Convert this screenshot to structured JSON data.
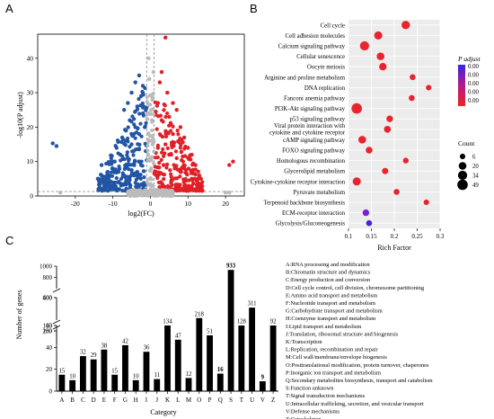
{
  "panels": {
    "a": "A",
    "b": "B",
    "c": "C"
  },
  "chart_data": [
    {
      "type": "scatter",
      "xlabel": "log2(FC)",
      "ylabel": "-log10(P adjust)",
      "xlim": [
        -30,
        25
      ],
      "ylim": [
        0,
        47
      ],
      "x_ticks": [
        -20,
        -10,
        0,
        10,
        20
      ],
      "y_ticks": [
        0,
        10,
        20,
        30,
        40
      ],
      "thresholds": {
        "x": [
          -1,
          1
        ],
        "y": 1.3
      },
      "series": [
        {
          "color": "#2255a4",
          "points": [
            [
              -25,
              14.5
            ],
            [
              -26,
              15.3
            ],
            [
              -13,
              9
            ],
            [
              -14,
              5
            ],
            [
              -7,
              25
            ],
            [
              -6,
              27
            ],
            [
              -5,
              30
            ],
            [
              -4,
              33
            ],
            [
              -3,
              35
            ],
            [
              -2.5,
              29
            ],
            [
              -5.5,
              22
            ],
            [
              -8,
              12
            ],
            [
              -10,
              8
            ],
            [
              -11,
              6
            ],
            [
              -9,
              14
            ],
            [
              -7.5,
              17
            ],
            [
              -4,
              20
            ],
            [
              -3.5,
              26
            ],
            [
              -2,
              32
            ],
            [
              -6.5,
              19
            ],
            [
              -12,
              4
            ],
            [
              -3,
              18
            ],
            [
              -2,
              24
            ],
            [
              -9.5,
              10
            ],
            [
              -5,
              15
            ],
            [
              -8.5,
              7
            ],
            [
              -6,
              11
            ],
            [
              -4.5,
              13
            ],
            [
              -2.5,
              9
            ],
            [
              -7,
              6
            ],
            [
              -3.5,
              7
            ],
            [
              -1.5,
              20
            ]
          ]
        },
        {
          "color": "#e01f26",
          "points": [
            [
              4,
              46
            ],
            [
              3,
              36
            ],
            [
              2.5,
              33
            ],
            [
              4.5,
              30
            ],
            [
              6,
              27
            ],
            [
              7,
              25
            ],
            [
              5,
              23
            ],
            [
              8,
              20
            ],
            [
              9,
              17
            ],
            [
              10,
              14
            ],
            [
              11,
              12
            ],
            [
              12,
              9
            ],
            [
              13,
              6
            ],
            [
              3,
              22
            ],
            [
              6,
              18
            ],
            [
              2,
              27
            ],
            [
              4,
              15
            ],
            [
              7,
              11
            ],
            [
              9,
              8
            ],
            [
              5,
              12
            ],
            [
              3.5,
              9
            ],
            [
              11,
              5
            ],
            [
              8,
              7
            ],
            [
              6.5,
              8
            ],
            [
              2,
              14
            ],
            [
              22,
              10
            ],
            [
              21,
              9
            ]
          ]
        },
        {
          "color": "#bbbbbb",
          "points": [
            [
              -24,
              1
            ],
            [
              20,
              1
            ],
            [
              21,
              1
            ],
            [
              -0.5,
              40
            ],
            [
              0.8,
              36
            ],
            [
              -0.3,
              34
            ],
            [
              0.5,
              28
            ],
            [
              -0.8,
              26
            ],
            [
              0.4,
              22
            ],
            [
              -0.5,
              18
            ],
            [
              0.6,
              15
            ],
            [
              -0.6,
              12
            ],
            [
              0.2,
              8
            ],
            [
              -0.3,
              5
            ],
            [
              0.7,
              3
            ],
            [
              -3,
              1
            ],
            [
              3,
              1
            ],
            [
              -6,
              1
            ],
            [
              6,
              1
            ]
          ]
        }
      ]
    },
    {
      "type": "scatter",
      "xlabel": "Rich Factor",
      "x_ticks": [
        0.1,
        0.15,
        0.2,
        0.25,
        0.3
      ],
      "xlim": [
        0.1,
        0.3
      ],
      "legend_color_title": "P adjust",
      "legend_color_ticks": [
        "0.00",
        "0.00",
        "0.00",
        "0.00",
        "0.00"
      ],
      "legend_size_title": "Count",
      "legend_size_ticks": [
        6,
        20,
        34,
        49
      ],
      "categories": [
        "Cell cycle",
        "Cell adhesion molecules",
        "Calcium signaling pathway",
        "Cellular senescence",
        "Oocyte meiosis",
        "Arginine and proline metabolism",
        "DNA replication",
        "Fanconi anemia pathway",
        "PI3K-Akt signaling pathway",
        "p53 signaling pathway",
        "Viral protein interaction with cytokine and cytokine receptor",
        "cAMP signaling pathway",
        "FOXO signaling pathway",
        "Homologous recombination",
        "Glycerolipid metabolism",
        "Cytokine-cytokine receptor interaction",
        "Pyruvate metabolism",
        "Terpenoid backbone biosynthesis",
        "ECM-receptor interaction",
        "Glycolysis/Gluconeogenesis"
      ],
      "rich_factor": [
        0.225,
        0.165,
        0.135,
        0.17,
        0.175,
        0.24,
        0.275,
        0.238,
        0.118,
        0.19,
        0.185,
        0.13,
        0.145,
        0.225,
        0.18,
        0.118,
        0.205,
        0.27,
        0.138,
        0.145
      ],
      "count": [
        27,
        24,
        34,
        20,
        18,
        8,
        6,
        8,
        49,
        12,
        14,
        20,
        13,
        7,
        10,
        24,
        8,
        6,
        12,
        8
      ],
      "colors": [
        "#e8252e",
        "#e8252e",
        "#e8252e",
        "#e8252e",
        "#e8252e",
        "#e8252e",
        "#e8252e",
        "#e8252e",
        "#e8252e",
        "#e8252e",
        "#e8252e",
        "#e8252e",
        "#e8252e",
        "#e8252e",
        "#e8252e",
        "#e8252e",
        "#e8252e",
        "#e8252e",
        "#7a1fd6",
        "#4a22d8"
      ]
    },
    {
      "type": "bar",
      "xlabel": "Category",
      "ylabel": "Number of genes",
      "categories": [
        "A",
        "B",
        "C",
        "D",
        "E",
        "F",
        "G",
        "H",
        "I",
        "J",
        "K",
        "L",
        "M",
        "O",
        "P",
        "Q",
        "S",
        "T",
        "U",
        "V",
        "Z"
      ],
      "values": [
        15,
        10,
        32,
        29,
        38,
        15,
        42,
        10,
        36,
        11,
        134,
        47,
        12,
        218,
        51,
        16,
        933,
        128,
        311,
        9,
        92
      ],
      "label_text": [
        "15",
        "10",
        "32",
        "29",
        "38",
        "15",
        "42",
        "10",
        "36",
        "11",
        "134",
        "47",
        "12",
        "218",
        "51",
        "16",
        "933",
        "128",
        "311",
        "9",
        "92"
      ],
      "y_ticks_bottom": [
        0,
        20,
        40,
        60
      ],
      "y_ticks_mid1": [
        180,
        140
      ],
      "y_ticks_mid2": [
        200,
        400
      ],
      "y_ticks_top": [
        600,
        800,
        1000
      ],
      "legend": [
        "A:RNA processing and modification",
        "B:Chromatin structure and dynamics",
        "C:Energy production and conversion",
        "D:Cell cycle control, cell division, chromosome partitioning",
        "E:Amino acid transport and metabolism",
        "F:Nucleotide transport and metabolism",
        "G:Carbohydrate transport and metabolism",
        "H:Coenzyme transport and metabolism",
        "I:Lipid transport and metabolism",
        "J:Translation, ribosomal structure and biogenesis",
        "K:Transcription",
        "L:Replication, recombination and repair",
        "M:Cell wall/membrane/envelope biogenesis",
        "O:Posttranslational modification, protein turnover, chaperones",
        "P:Inorganic ion transport and metabolism",
        "Q:Secondary metabolites biosynthesis, transport and catabolism",
        "S:Function unknown",
        "T:Signal transduction mechanisms",
        "U:Intracellular trafficking, secretion, and vesicular transport",
        "V:Defense mechanisms",
        "Z:Cytoskeleton"
      ]
    }
  ]
}
